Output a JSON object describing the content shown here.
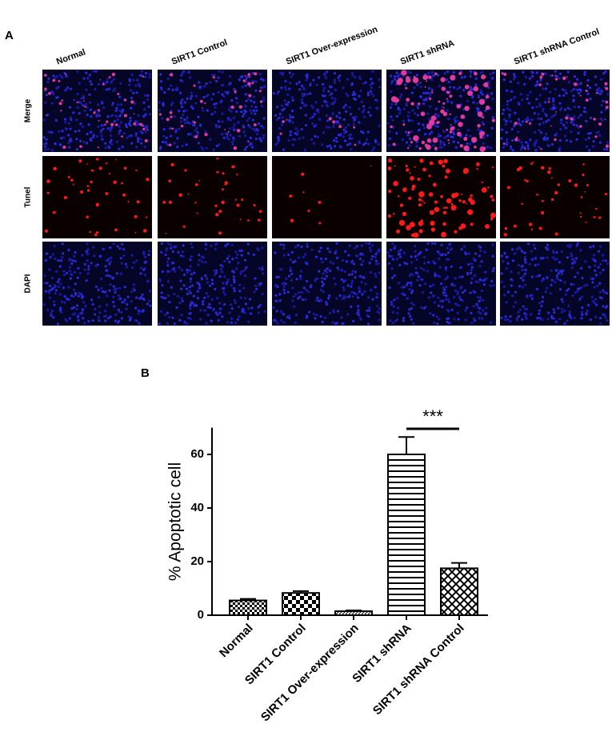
{
  "panel_a": {
    "label": "A",
    "columns": [
      "Normal",
      "SIRT1 Control",
      "SIRT1 Over-expression",
      "SIRT1 shRNA",
      "SIRT1 shRNA Control"
    ],
    "rows": [
      "Merge",
      "Tunel",
      "DAPI"
    ]
  },
  "chart_data": {
    "type": "bar",
    "panel_label": "B",
    "ylabel": "% Apoptotic cell",
    "categories": [
      "Normal",
      "SIRT1 Control",
      "SIRT1 Over-expression",
      "SIRT1 shRNA",
      "SIRT1 shRNA Control"
    ],
    "values": [
      5.5,
      8.3,
      1.5,
      60,
      17.5
    ],
    "errors": [
      0.6,
      0.7,
      0.3,
      6.5,
      2.0
    ],
    "ylim": [
      0,
      70
    ],
    "yticks": [
      0,
      20,
      40,
      60
    ],
    "annotation": "***",
    "color": "#000000"
  }
}
